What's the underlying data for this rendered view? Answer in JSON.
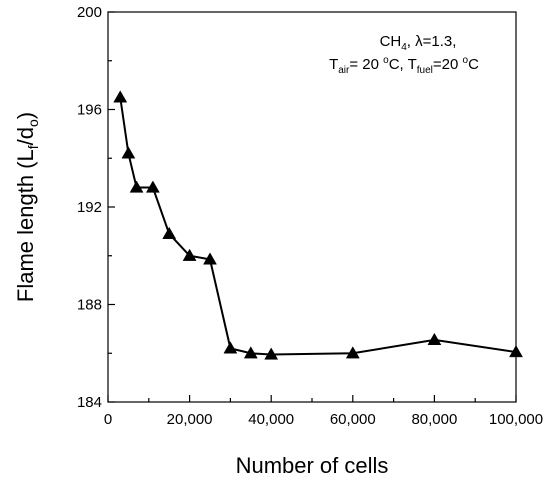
{
  "chart_data": {
    "type": "line",
    "xlabel": "Number of cells",
    "ylabel": {
      "main": "Flame length (L",
      "sub1": "f",
      "mid": "/d",
      "sub2": "o",
      "end": ")"
    },
    "xlim": [
      0,
      100000
    ],
    "ylim": [
      184,
      200
    ],
    "x_ticks": [
      0,
      20000,
      40000,
      60000,
      80000,
      100000
    ],
    "x_tick_labels": [
      "0",
      "20,000",
      "40,000",
      "60,000",
      "80,000",
      "100,000"
    ],
    "y_ticks": [
      184,
      188,
      192,
      196,
      200
    ],
    "y_tick_labels": [
      "184",
      "188",
      "192",
      "196",
      "200"
    ],
    "grid": false,
    "marker": "triangle-up",
    "series": [
      {
        "x": [
          3000,
          5000,
          7000,
          11000,
          15000,
          20000,
          25000,
          30000,
          35000,
          40000,
          60000,
          80000,
          100000
        ],
        "y": [
          196.5,
          194.2,
          192.8,
          192.8,
          190.9,
          190.0,
          189.85,
          186.2,
          186.0,
          185.95,
          186.0,
          186.55,
          186.05
        ]
      }
    ],
    "annotation": {
      "line1": {
        "a": "CH",
        "a_sub": "4",
        "b": ", λ=1.3,"
      },
      "line2": {
        "a": "T",
        "a_sub": "air",
        "b": "= 20 ",
        "b_sup": "o",
        "c": "C, T",
        "c_sub": "fuel",
        "d": "=20 ",
        "d_sup": "o",
        "e": "C"
      }
    }
  }
}
